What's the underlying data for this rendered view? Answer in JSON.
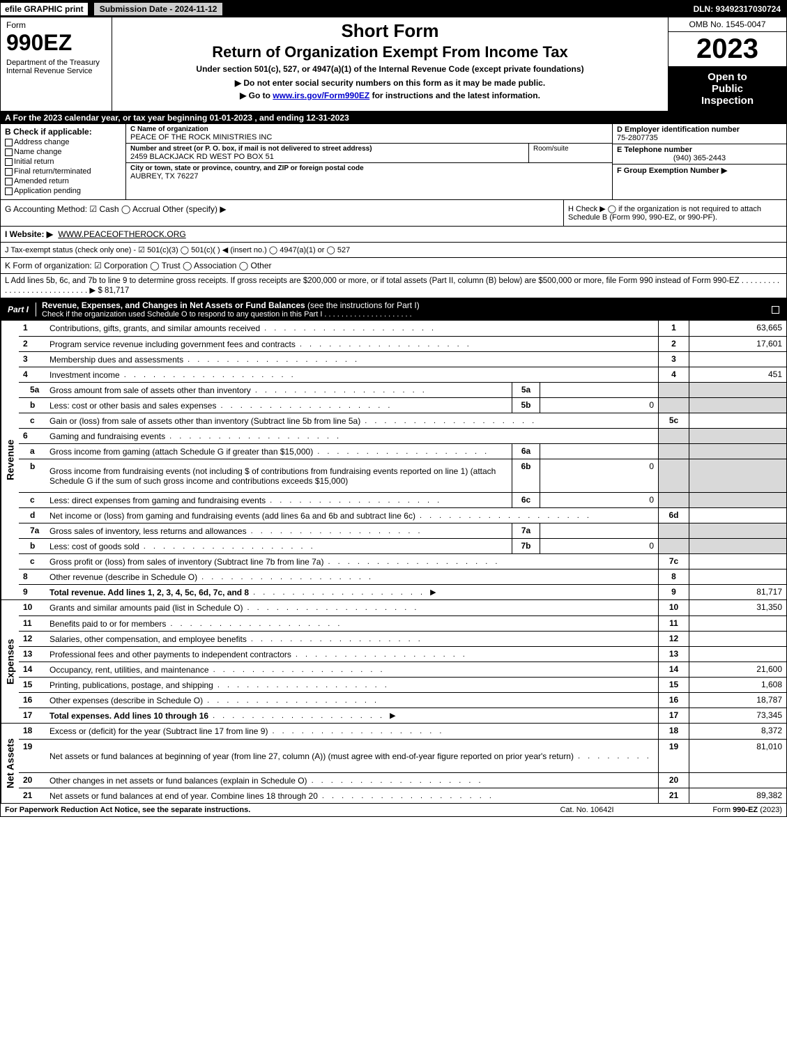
{
  "top": {
    "efile": "efile GRAPHIC print",
    "submission": "Submission Date - 2024-11-12",
    "dln": "DLN: 93492317030724"
  },
  "header": {
    "form_word": "Form",
    "form_num": "990EZ",
    "dept": "Department of the Treasury\nInternal Revenue Service",
    "title1": "Short Form",
    "title2": "Return of Organization Exempt From Income Tax",
    "title3": "Under section 501(c), 527, or 4947(a)(1) of the Internal Revenue Code (except private foundations)",
    "title4": "▶ Do not enter social security numbers on this form as it may be made public.",
    "title5_pre": "▶ Go to ",
    "title5_link": "www.irs.gov/Form990EZ",
    "title5_post": " for instructions and the latest information.",
    "omb": "OMB No. 1545-0047",
    "year": "2023",
    "open1": "Open to",
    "open2": "Public",
    "open3": "Inspection"
  },
  "row_a": "A  For the 2023 calendar year, or tax year beginning 01-01-2023 , and ending 12-31-2023",
  "block_b": {
    "head": "B  Check if applicable:",
    "items": [
      "Address change",
      "Name change",
      "Initial return",
      "Final return/terminated",
      "Amended return",
      "Application pending"
    ]
  },
  "block_c": {
    "name_lbl": "C Name of organization",
    "name_val": "PEACE OF THE ROCK MINISTRIES INC",
    "street_lbl": "Number and street (or P. O. box, if mail is not delivered to street address)",
    "street_val": "2459 BLACKJACK RD WEST PO BOX 51",
    "room_lbl": "Room/suite",
    "city_lbl": "City or town, state or province, country, and ZIP or foreign postal code",
    "city_val": "AUBREY, TX  76227"
  },
  "block_def": {
    "d_lbl": "D Employer identification number",
    "d_val": "75-2807735",
    "e_lbl": "E Telephone number",
    "e_val": "(940) 365-2443",
    "f_lbl": "F Group Exemption Number  ▶"
  },
  "row_g": "G Accounting Method:   ☑ Cash   ◯ Accrual   Other (specify) ▶",
  "row_h": "H  Check ▶  ◯  if the organization is not required to attach Schedule B (Form 990, 990-EZ, or 990-PF).",
  "row_i_pre": "I Website: ▶",
  "row_i_link": "WWW.PEACEOFTHEROCK.ORG",
  "row_j": "J Tax-exempt status (check only one) -  ☑ 501(c)(3)  ◯ 501(c)(  ) ◀ (insert no.)  ◯ 4947(a)(1) or  ◯ 527",
  "row_k": "K Form of organization:   ☑ Corporation   ◯ Trust   ◯ Association   ◯ Other",
  "row_l": "L Add lines 5b, 6c, and 7b to line 9 to determine gross receipts. If gross receipts are $200,000 or more, or if total assets (Part II, column (B) below) are $500,000 or more, file Form 990 instead of Form 990-EZ  .  .  .  .  .  .  .  .  .  .  .  .  .  .  .  .  .  .  .  .  .  .  .  .  .  .  .  .  ▶ $ 81,717",
  "part1": {
    "label": "Part I",
    "title_bold": "Revenue, Expenses, and Changes in Net Assets or Fund Balances",
    "title_norm": " (see the instructions for Part I)",
    "check_line": "Check if the organization used Schedule O to respond to any question in this Part I  .  .  .  .  .  .  .  .  .  .  .  .  .  .  .  .  .  .  .  .  ."
  },
  "revenue_label": "Revenue",
  "revenue_lines": [
    {
      "n": "1",
      "d": "Contributions, gifts, grants, and similar amounts received",
      "rn": "1",
      "ra": "63,665"
    },
    {
      "n": "2",
      "d": "Program service revenue including government fees and contracts",
      "rn": "2",
      "ra": "17,601"
    },
    {
      "n": "3",
      "d": "Membership dues and assessments",
      "rn": "3",
      "ra": ""
    },
    {
      "n": "4",
      "d": "Investment income",
      "rn": "4",
      "ra": "451"
    },
    {
      "n": "5a",
      "sub": true,
      "d": "Gross amount from sale of assets other than inventory",
      "sn": "5a",
      "sa": "",
      "rn_grey": true
    },
    {
      "n": "b",
      "sub": true,
      "d": "Less: cost or other basis and sales expenses",
      "sn": "5b",
      "sa": "0",
      "rn_grey": true
    },
    {
      "n": "c",
      "sub": true,
      "d": "Gain or (loss) from sale of assets other than inventory (Subtract line 5b from line 5a)",
      "rn": "5c",
      "ra": ""
    },
    {
      "n": "6",
      "d": "Gaming and fundraising events",
      "rn_grey": true,
      "no_rnum": true
    },
    {
      "n": "a",
      "sub": true,
      "d": "Gross income from gaming (attach Schedule G if greater than $15,000)",
      "sn": "6a",
      "sa": "",
      "rn_grey": true
    },
    {
      "n": "b",
      "sub": true,
      "d": "Gross income from fundraising events (not including $                    of contributions from fundraising events reported on line 1) (attach Schedule G if the sum of such gross income and contributions exceeds $15,000)",
      "sn": "6b",
      "sa": "0",
      "rn_grey": true,
      "tall": true
    },
    {
      "n": "c",
      "sub": true,
      "d": "Less: direct expenses from gaming and fundraising events",
      "sn": "6c",
      "sa": "0",
      "rn_grey": true
    },
    {
      "n": "d",
      "sub": true,
      "d": "Net income or (loss) from gaming and fundraising events (add lines 6a and 6b and subtract line 6c)",
      "rn": "6d",
      "ra": ""
    },
    {
      "n": "7a",
      "sub": true,
      "d": "Gross sales of inventory, less returns and allowances",
      "sn": "7a",
      "sa": "",
      "rn_grey": true
    },
    {
      "n": "b",
      "sub": true,
      "d": "Less: cost of goods sold",
      "sn": "7b",
      "sa": "0",
      "rn_grey": true
    },
    {
      "n": "c",
      "sub": true,
      "d": "Gross profit or (loss) from sales of inventory (Subtract line 7b from line 7a)",
      "rn": "7c",
      "ra": ""
    },
    {
      "n": "8",
      "d": "Other revenue (describe in Schedule O)",
      "rn": "8",
      "ra": ""
    },
    {
      "n": "9",
      "d": "Total revenue. Add lines 1, 2, 3, 4, 5c, 6d, 7c, and 8",
      "rn": "9",
      "ra": "81,717",
      "bold": true,
      "arrow": true
    }
  ],
  "expenses_label": "Expenses",
  "expenses_lines": [
    {
      "n": "10",
      "d": "Grants and similar amounts paid (list in Schedule O)",
      "rn": "10",
      "ra": "31,350"
    },
    {
      "n": "11",
      "d": "Benefits paid to or for members",
      "rn": "11",
      "ra": ""
    },
    {
      "n": "12",
      "d": "Salaries, other compensation, and employee benefits",
      "rn": "12",
      "ra": ""
    },
    {
      "n": "13",
      "d": "Professional fees and other payments to independent contractors",
      "rn": "13",
      "ra": ""
    },
    {
      "n": "14",
      "d": "Occupancy, rent, utilities, and maintenance",
      "rn": "14",
      "ra": "21,600"
    },
    {
      "n": "15",
      "d": "Printing, publications, postage, and shipping",
      "rn": "15",
      "ra": "1,608"
    },
    {
      "n": "16",
      "d": "Other expenses (describe in Schedule O)",
      "rn": "16",
      "ra": "18,787"
    },
    {
      "n": "17",
      "d": "Total expenses. Add lines 10 through 16",
      "rn": "17",
      "ra": "73,345",
      "bold": true,
      "arrow": true
    }
  ],
  "netassets_label": "Net Assets",
  "netassets_lines": [
    {
      "n": "18",
      "d": "Excess or (deficit) for the year (Subtract line 17 from line 9)",
      "rn": "18",
      "ra": "8,372"
    },
    {
      "n": "19",
      "d": "Net assets or fund balances at beginning of year (from line 27, column (A)) (must agree with end-of-year figure reported on prior year's return)",
      "rn": "19",
      "ra": "81,010",
      "tall": true
    },
    {
      "n": "20",
      "d": "Other changes in net assets or fund balances (explain in Schedule O)",
      "rn": "20",
      "ra": ""
    },
    {
      "n": "21",
      "d": "Net assets or fund balances at end of year. Combine lines 18 through 20",
      "rn": "21",
      "ra": "89,382"
    }
  ],
  "footer": {
    "left": "For Paperwork Reduction Act Notice, see the separate instructions.",
    "mid": "Cat. No. 10642I",
    "right": "Form 990-EZ (2023)"
  },
  "colors": {
    "black": "#000000",
    "grey": "#d9d9d9",
    "link": "#0000cc"
  }
}
